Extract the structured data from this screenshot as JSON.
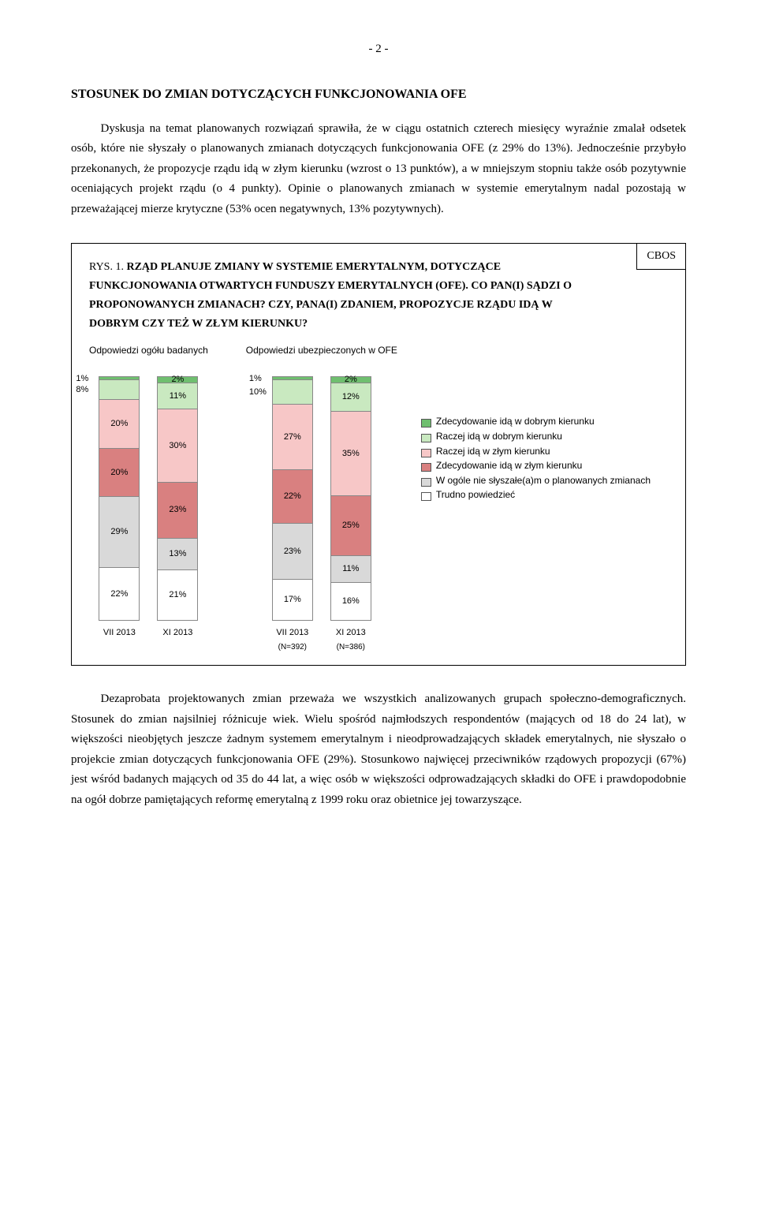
{
  "pageNumber": "- 2 -",
  "sectionTitle": "STOSUNEK DO ZMIAN DOTYCZĄCYCH FUNKCJONOWANIA OFE",
  "para1": "Dyskusja na temat planowanych rozwiązań sprawiła, że w ciągu ostatnich czterech miesięcy wyraźnie zmalał odsetek osób, które nie słyszały o planowanych zmianach dotyczących funkcjonowania OFE (z 29% do 13%). Jednocześnie przybyło przekonanych, że propozycje rządu idą w złym kierunku (wzrost o 13 punktów), a w mniejszym stopniu także osób pozytywnie oceniających projekt rządu (o 4 punkty). Opinie o planowanych zmianach w systemie emerytalnym nadal pozostają w przeważającej mierze krytyczne (53% ocen negatywnych, 13% pozytywnych).",
  "cbos": "CBOS",
  "figRys": "RYS. 1.",
  "figCaptionBold1": "RZĄD PLANUJE ZMIANY W SYSTEMIE EMERYTALNYM, DOTYCZĄCE FUNKCJONOWANIA OTWARTYCH FUNDUSZY EMERYTALNYCH (OFE). CO PAN(I) SĄDZI O PROPONOWANYCH ZMIANACH? CZY, PANA(I) ZDANIEM, PROPOZYCJE RZĄDU IDĄ W DOBRYM CZY TEŻ W ZŁYM KIERUNKU?",
  "group1Title": "Odpowiedzi ogółu badanych",
  "group2Title": "Odpowiedzi ubezpieczonych w OFE",
  "chart": {
    "barHeightPx": 310,
    "colors": {
      "zdecDobrym": "#6fbf6f",
      "raczejDobrym": "#c9e9c0",
      "raczejZlym": "#f7c7c7",
      "zdecZlym": "#d98080",
      "nieSlyszalem": "#d9d9d9",
      "trudno": "#ffffff"
    },
    "bars": [
      {
        "group": 1,
        "x": "VII 2013",
        "xsub": "",
        "segs": [
          {
            "k": "zdecDobrym",
            "v": 1,
            "out": "left"
          },
          {
            "k": "raczejDobrym",
            "v": 8,
            "out": "left"
          },
          {
            "k": "raczejZlym",
            "v": 20
          },
          {
            "k": "zdecZlym",
            "v": 20
          },
          {
            "k": "nieSlyszalem",
            "v": 29
          },
          {
            "k": "trudno",
            "v": 22
          }
        ]
      },
      {
        "group": 1,
        "x": "XI 2013",
        "xsub": "",
        "segs": [
          {
            "k": "zdecDobrym",
            "v": 2
          },
          {
            "k": "raczejDobrym",
            "v": 11
          },
          {
            "k": "raczejZlym",
            "v": 30
          },
          {
            "k": "zdecZlym",
            "v": 23
          },
          {
            "k": "nieSlyszalem",
            "v": 13
          },
          {
            "k": "trudno",
            "v": 21
          }
        ]
      },
      {
        "group": 2,
        "x": "VII 2013",
        "xsub": "(N=392)",
        "segs": [
          {
            "k": "zdecDobrym",
            "v": 1,
            "out": "left"
          },
          {
            "k": "raczejDobrym",
            "v": 10,
            "out": "left"
          },
          {
            "k": "raczejZlym",
            "v": 27
          },
          {
            "k": "zdecZlym",
            "v": 22
          },
          {
            "k": "nieSlyszalem",
            "v": 23
          },
          {
            "k": "trudno",
            "v": 17
          }
        ]
      },
      {
        "group": 2,
        "x": "XI 2013",
        "xsub": "(N=386)",
        "segs": [
          {
            "k": "zdecDobrym",
            "v": 2
          },
          {
            "k": "raczejDobrym",
            "v": 12
          },
          {
            "k": "raczejZlym",
            "v": 35
          },
          {
            "k": "zdecZlym",
            "v": 25
          },
          {
            "k": "nieSlyszalem",
            "v": 11
          },
          {
            "k": "trudno",
            "v": 16
          }
        ]
      }
    ]
  },
  "legend": [
    {
      "k": "zdecDobrym",
      "label": "Zdecydowanie idą w dobrym kierunku"
    },
    {
      "k": "raczejDobrym",
      "label": "Raczej idą w dobrym kierunku"
    },
    {
      "k": "raczejZlym",
      "label": "Raczej idą w złym kierunku"
    },
    {
      "k": "zdecZlym",
      "label": "Zdecydowanie idą w złym kierunku"
    },
    {
      "k": "nieSlyszalem",
      "label": "W ogóle nie słyszałe(a)m o planowanych zmianach"
    },
    {
      "k": "trudno",
      "label": "Trudno powiedzieć"
    }
  ],
  "para2": "Dezaprobata projektowanych zmian przeważa we wszystkich analizowanych grupach społeczno-demograficznych. Stosunek do zmian najsilniej różnicuje wiek. Wielu spośród najmłodszych respondentów (mających od 18 do 24 lat), w większości nieobjętych jeszcze żadnym systemem emerytalnym i nieodprowadzających składek emerytalnych, nie słyszało o projekcie zmian dotyczących funkcjonowania OFE (29%). Stosunkowo najwięcej przeciwników rządowych propozycji (67%) jest wśród badanych mających od 35 do 44 lat, a więc osób w większości odprowadzających składki do OFE i prawdopodobnie na ogół dobrze pamiętających reformę emerytalną z 1999 roku oraz obietnice jej towarzyszące."
}
